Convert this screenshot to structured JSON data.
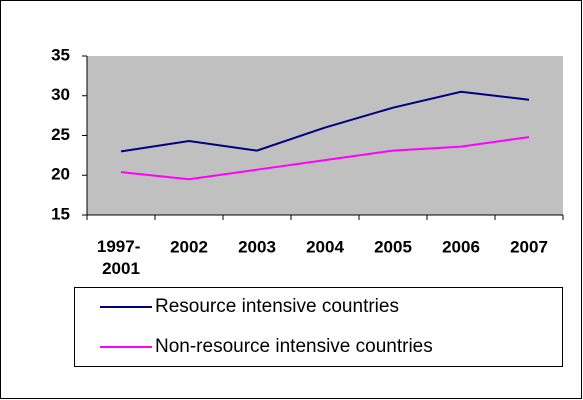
{
  "chart_data": {
    "type": "line",
    "categories": [
      "1997- 2001",
      "2002",
      "2003",
      "2004",
      "2005",
      "2006",
      "2007"
    ],
    "series": [
      {
        "name": "Resource intensive countries",
        "color": "#000080",
        "values": [
          23,
          24.3,
          23.1,
          26,
          28.5,
          30.5,
          29.5
        ]
      },
      {
        "name": "Non-resource intensive countries",
        "color": "#ff00ff",
        "values": [
          20.4,
          19.5,
          20.7,
          21.9,
          23.1,
          23.6,
          24.8
        ]
      }
    ],
    "ylim": [
      15,
      35
    ],
    "yticks": [
      15,
      20,
      25,
      30,
      35
    ],
    "grid": false,
    "plot_background": "#c0c0c0"
  }
}
